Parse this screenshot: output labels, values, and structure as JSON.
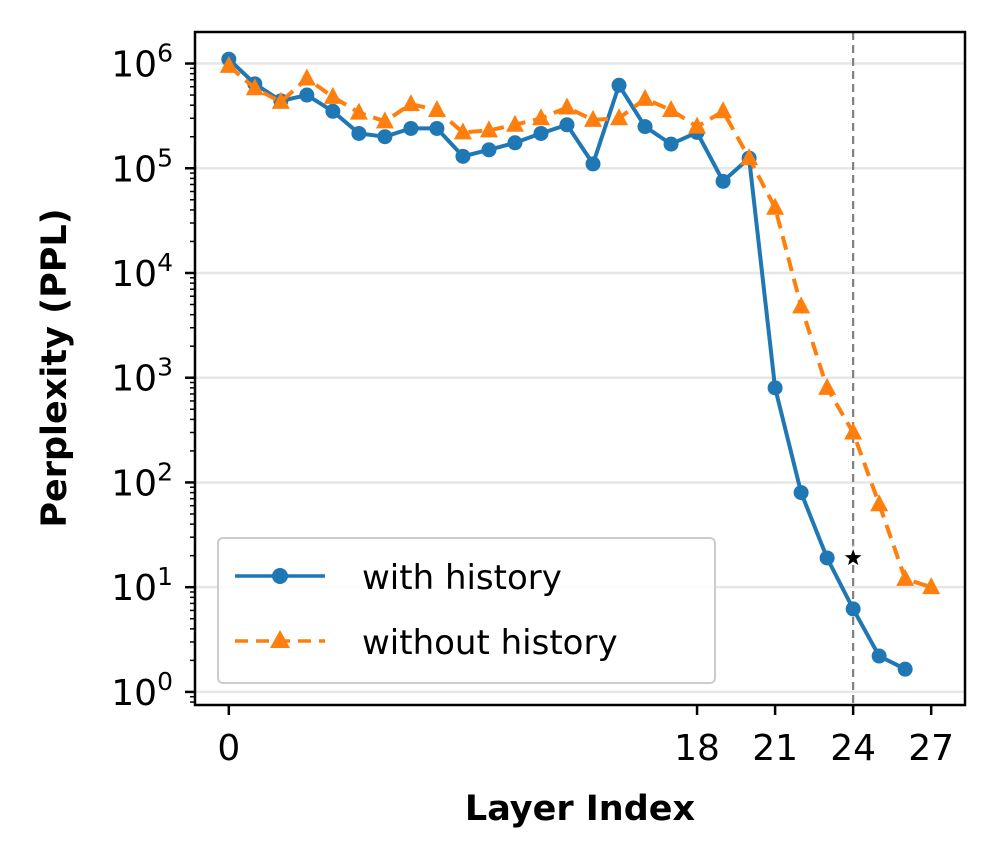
{
  "chart_data": {
    "type": "line",
    "title": "",
    "xlabel": "Layer Index",
    "ylabel": "Perplexity (PPL)",
    "x": [
      0,
      1,
      2,
      3,
      4,
      5,
      6,
      7,
      8,
      9,
      10,
      11,
      12,
      13,
      14,
      15,
      16,
      17,
      18,
      19,
      20,
      21,
      22,
      23,
      24,
      25,
      26,
      27
    ],
    "xticks": [
      0,
      18,
      21,
      24,
      27
    ],
    "xlim": [
      -1.3,
      28.3
    ],
    "ylim": [
      0.75,
      2000000
    ],
    "yscale": "log",
    "yticks": [
      {
        "value": 1,
        "base": "10",
        "exp": "0"
      },
      {
        "value": 10,
        "base": "10",
        "exp": "1"
      },
      {
        "value": 100,
        "base": "10",
        "exp": "2"
      },
      {
        "value": 1000,
        "base": "10",
        "exp": "3"
      },
      {
        "value": 10000,
        "base": "10",
        "exp": "4"
      },
      {
        "value": 100000,
        "base": "10",
        "exp": "5"
      },
      {
        "value": 1000000,
        "base": "10",
        "exp": "6"
      }
    ],
    "grid": "horizontal",
    "legend_position": "lower-left",
    "reference_line": {
      "x": 24,
      "style": "dashed",
      "color": "#808080"
    },
    "marker_point": {
      "x": 24,
      "y": 19,
      "symbol": "star"
    },
    "series": [
      {
        "name": "with history",
        "color": "#1f77b4",
        "style": "solid",
        "marker": "circle",
        "values": [
          1100000,
          640000,
          440000,
          500000,
          350000,
          215000,
          200000,
          240000,
          240000,
          130000,
          150000,
          175000,
          215000,
          260000,
          110000,
          620000,
          250000,
          170000,
          220000,
          75000,
          125000,
          800,
          80,
          19,
          6.2,
          2.2,
          1.65,
          null
        ]
      },
      {
        "name": "without history",
        "color": "#ff7f0e",
        "style": "dashed",
        "marker": "triangle",
        "values": [
          950000,
          580000,
          430000,
          720000,
          480000,
          340000,
          280000,
          410000,
          360000,
          220000,
          230000,
          260000,
          300000,
          380000,
          290000,
          300000,
          460000,
          360000,
          250000,
          350000,
          125000,
          42000,
          4800,
          800,
          300,
          62,
          12,
          10
        ]
      }
    ]
  }
}
